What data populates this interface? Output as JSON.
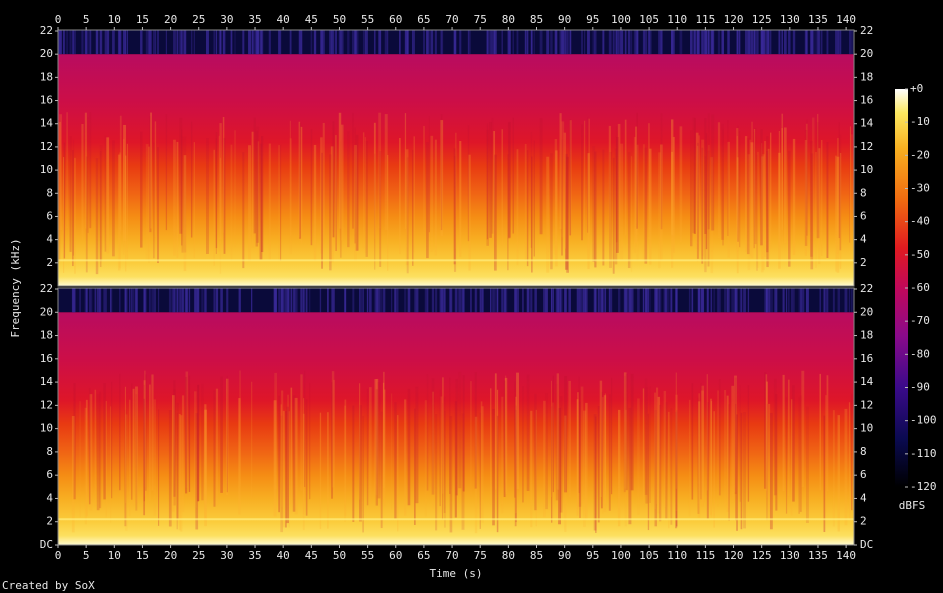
{
  "chart_data": {
    "type": "spectrogram",
    "xlabel": "Time (s)",
    "ylabel": "Frequency (kHz)",
    "xlim": [
      0,
      141.4
    ],
    "xticks": [
      0,
      5,
      10,
      15,
      20,
      25,
      30,
      35,
      40,
      45,
      50,
      55,
      60,
      65,
      70,
      75,
      80,
      85,
      90,
      95,
      100,
      105,
      110,
      115,
      120,
      125,
      130,
      135,
      140
    ],
    "channels": [
      {
        "ylim": [
          0,
          22
        ],
        "yticks": [
          2,
          4,
          6,
          8,
          10,
          12,
          14,
          16,
          18,
          20,
          22
        ]
      },
      {
        "ylim": [
          0,
          22
        ],
        "yticks": [
          {
            "value": 0,
            "label": "DC"
          },
          2,
          4,
          6,
          8,
          10,
          12,
          14,
          16,
          18,
          20,
          22
        ]
      }
    ],
    "colorbar": {
      "label": "dBFS",
      "lim": [
        -120,
        0
      ],
      "ticks": [
        {
          "value": 0,
          "label": "+0"
        },
        -10,
        -20,
        -30,
        -40,
        -50,
        -60,
        -70,
        -80,
        -90,
        -100,
        -110,
        -120
      ]
    },
    "credit": "Created by SoX"
  }
}
